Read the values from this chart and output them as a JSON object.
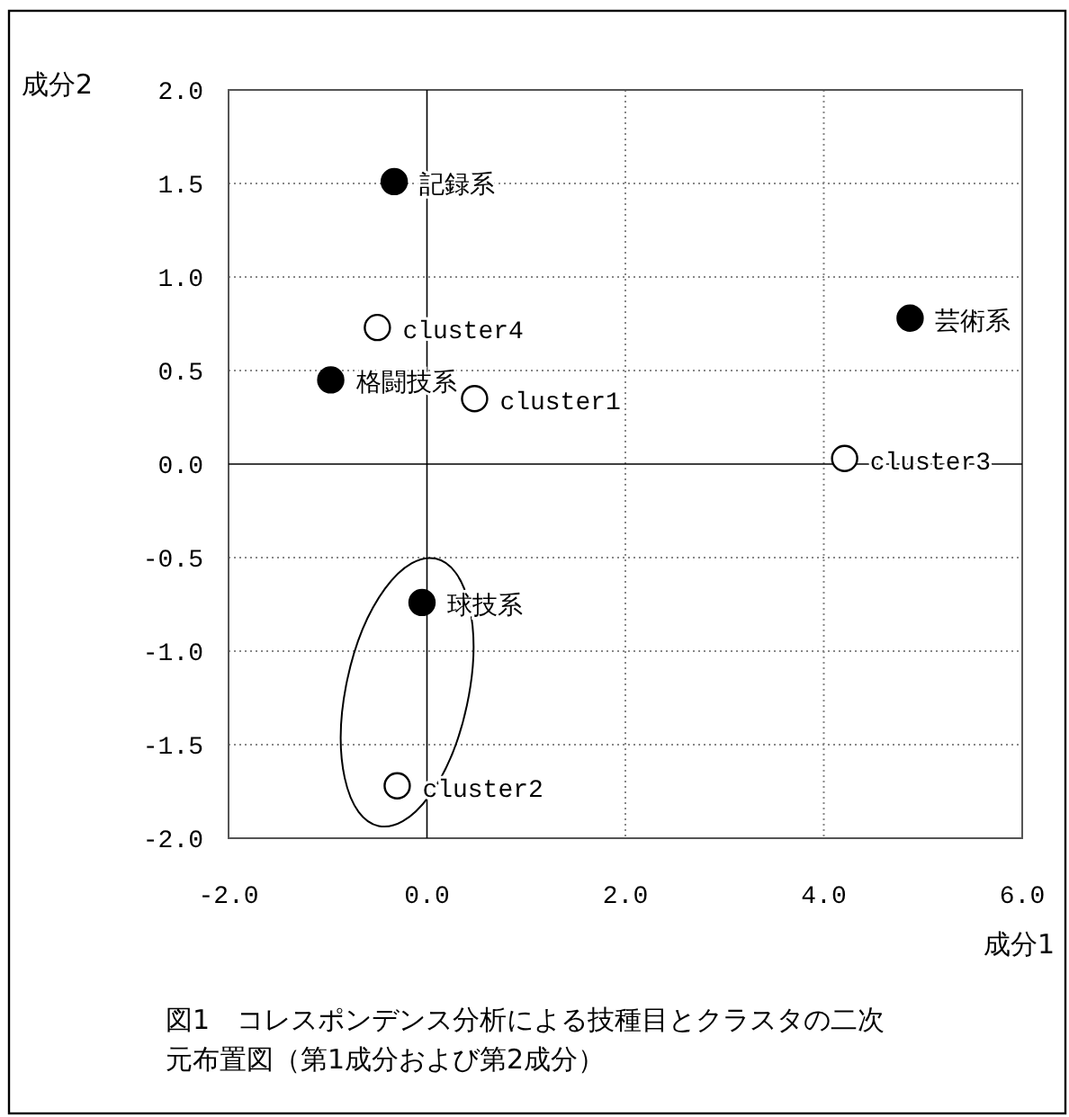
{
  "chart_data": {
    "type": "scatter",
    "title": "図1　コレスポンデンス分析による技種目とクラスタの二次元布置図（第1成分および第2成分）",
    "xlabel": "成分1",
    "ylabel": "成分2",
    "xlim": [
      -2,
      6
    ],
    "ylim": [
      -2,
      2
    ],
    "xticks": [
      {
        "value": -2,
        "label": "-2.0"
      },
      {
        "value": 0,
        "label": "0.0"
      },
      {
        "value": 2,
        "label": "2.0"
      },
      {
        "value": 4,
        "label": "4.0"
      },
      {
        "value": 6,
        "label": "6.0"
      }
    ],
    "yticks": [
      {
        "value": -2,
        "label": "-2.0"
      },
      {
        "value": -1.5,
        "label": "-1.5"
      },
      {
        "value": -1,
        "label": "-1.0"
      },
      {
        "value": -0.5,
        "label": "-0.5"
      },
      {
        "value": 0,
        "label": "0.0"
      },
      {
        "value": 0.5,
        "label": "0.5"
      },
      {
        "value": 1,
        "label": "1.0"
      },
      {
        "value": 1.5,
        "label": "1.5"
      },
      {
        "value": 2,
        "label": "2.0"
      }
    ],
    "grid": true,
    "marker": "circle",
    "series": [
      {
        "color": "#000000",
        "x": [
          -0.33,
          4.87,
          -0.97,
          -0.05
        ],
        "values": [
          1.51,
          0.78,
          0.45,
          -0.74
        ],
        "value_labels": [
          "記録系",
          "芸術系",
          "格闘技系",
          "球技系"
        ]
      },
      {
        "color": "#ffffff",
        "x": [
          0.48,
          -0.3,
          4.21,
          -0.5
        ],
        "values": [
          0.35,
          -1.72,
          0.03,
          0.73
        ],
        "value_labels": [
          "cluster1",
          "cluster2",
          "cluster3",
          "cluster4"
        ]
      }
    ]
  }
}
